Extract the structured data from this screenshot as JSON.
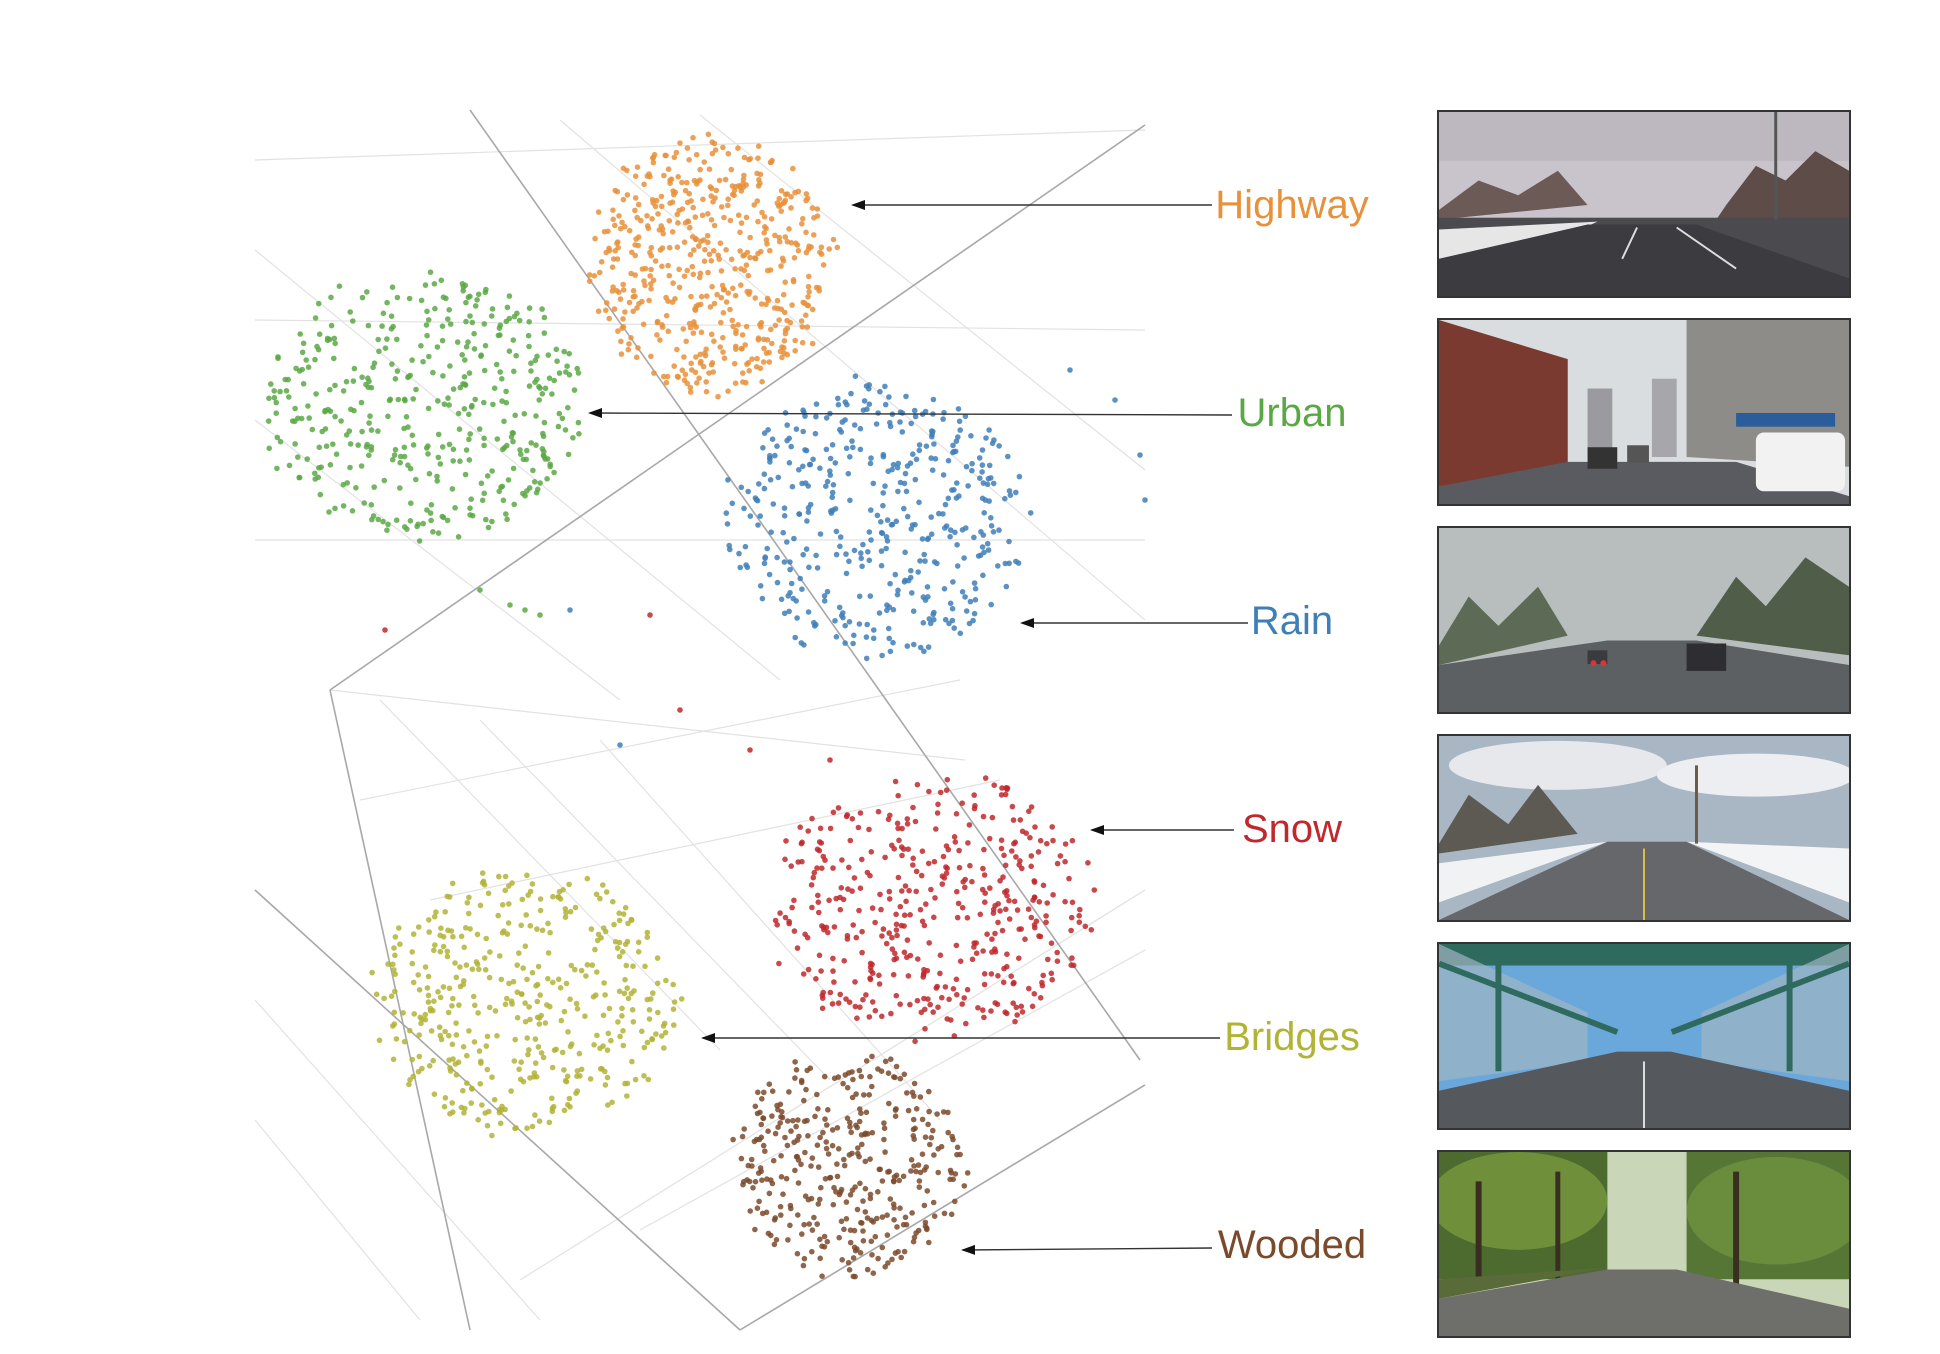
{
  "clusters": [
    {
      "key": "highway",
      "label": "Highway",
      "color": "#e8913a",
      "scene": "highway"
    },
    {
      "key": "urban",
      "label": "Urban",
      "color": "#5aa845",
      "scene": "urban"
    },
    {
      "key": "rain",
      "label": "Rain",
      "color": "#3f7fb8",
      "scene": "rain"
    },
    {
      "key": "snow",
      "label": "Snow",
      "color": "#c0282d",
      "scene": "snow"
    },
    {
      "key": "bridges",
      "label": "Bridges",
      "color": "#b1b335",
      "scene": "bridges"
    },
    {
      "key": "wooded",
      "label": "Wooded",
      "color": "#7b4a2b",
      "scene": "wooded"
    }
  ]
}
